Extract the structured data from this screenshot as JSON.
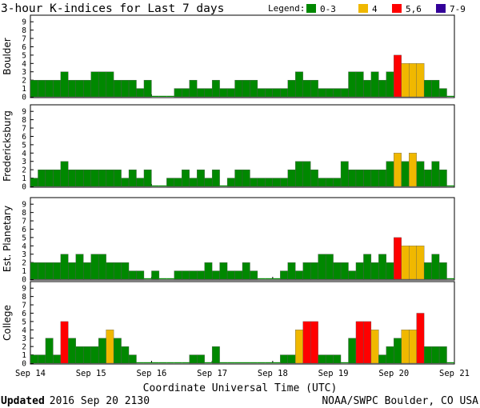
{
  "chart_data": {
    "type": "bar",
    "title": "3-hour K-indices for Last 7 days",
    "legend": {
      "label": "Legend:",
      "placement": "top-right",
      "entries": [
        {
          "label": "0-3",
          "color": "#008800"
        },
        {
          "label": "4",
          "color": "#f0b800"
        },
        {
          "label": "5,6",
          "color": "#ff0000"
        },
        {
          "label": "7-9",
          "color": "#330099"
        }
      ]
    },
    "xlabel": "Coordinate Universal Time (UTC)",
    "x_tick_labels": [
      "Sep 14",
      "Sep 15",
      "Sep 16",
      "Sep 17",
      "Sep 18",
      "Sep 19",
      "Sep 20",
      "Sep 21"
    ],
    "ylim": [
      0,
      9
    ],
    "y_ticks": [
      0,
      1,
      2,
      3,
      4,
      5,
      6,
      7,
      8,
      9
    ],
    "bars_per_day": 8,
    "panels": [
      {
        "name": "Boulder",
        "values": [
          2,
          2,
          2,
          2,
          3,
          2,
          2,
          2,
          3,
          3,
          3,
          2,
          2,
          2,
          1,
          2,
          0,
          0,
          0,
          1,
          1,
          2,
          1,
          1,
          2,
          1,
          1,
          2,
          2,
          2,
          1,
          1,
          1,
          1,
          2,
          3,
          2,
          2,
          1,
          1,
          1,
          1,
          3,
          3,
          2,
          3,
          2,
          3,
          5,
          4,
          4,
          4,
          2,
          2,
          1,
          0
        ]
      },
      {
        "name": "Fredericksburg",
        "values": [
          1,
          2,
          2,
          2,
          3,
          2,
          2,
          2,
          2,
          2,
          2,
          2,
          1,
          2,
          1,
          2,
          0,
          0,
          1,
          1,
          2,
          1,
          2,
          1,
          2,
          0,
          1,
          2,
          2,
          1,
          1,
          1,
          1,
          1,
          2,
          3,
          3,
          2,
          1,
          1,
          1,
          3,
          2,
          2,
          2,
          2,
          2,
          3,
          4,
          3,
          4,
          3,
          2,
          3,
          2,
          0
        ]
      },
      {
        "name": "Est. Planetary",
        "values": [
          2,
          2,
          2,
          2,
          3,
          2,
          3,
          2,
          3,
          3,
          2,
          2,
          2,
          1,
          1,
          0,
          1,
          0,
          0,
          1,
          1,
          1,
          1,
          2,
          1,
          2,
          1,
          1,
          2,
          1,
          0,
          0,
          0,
          1,
          2,
          1,
          2,
          2,
          3,
          3,
          2,
          2,
          1,
          2,
          3,
          2,
          3,
          2,
          5,
          4,
          4,
          4,
          2,
          3,
          2,
          0
        ]
      },
      {
        "name": "College",
        "values": [
          1,
          1,
          3,
          1,
          5,
          3,
          2,
          2,
          2,
          3,
          4,
          3,
          2,
          1,
          0,
          0,
          0,
          0,
          0,
          0,
          0,
          1,
          1,
          0,
          2,
          0,
          0,
          0,
          0,
          0,
          0,
          0,
          0,
          1,
          1,
          4,
          5,
          5,
          1,
          1,
          1,
          0,
          3,
          5,
          5,
          4,
          1,
          2,
          3,
          4,
          4,
          6,
          2,
          2,
          2,
          0
        ]
      }
    ]
  },
  "footer": {
    "updated_label": "Updated",
    "updated_value": "2016 Sep 20 2130",
    "source": "NOAA/SWPC Boulder, CO USA"
  }
}
